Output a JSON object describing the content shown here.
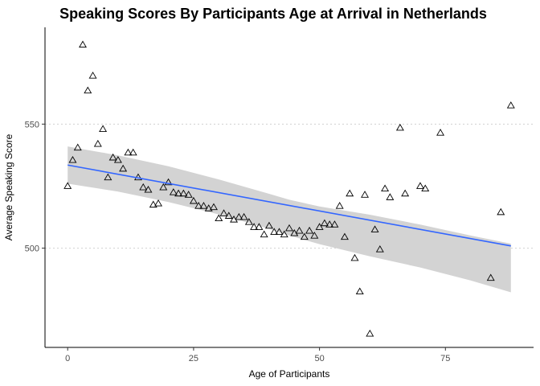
{
  "chart_data": {
    "type": "scatter",
    "title": "Speaking Scores By Participants Age at Arrival in Netherlands",
    "xlabel": "Age of Participants",
    "ylabel": "Average Speaking Score",
    "xlim": [
      -4.5,
      92.5
    ],
    "ylim": [
      460,
      589
    ],
    "x_ticks": [
      0,
      25,
      50,
      75
    ],
    "y_ticks": [
      500,
      550
    ],
    "grid": "horizontal dotted",
    "marker": "open-triangle",
    "colors": {
      "points": "#000000",
      "trend": "#3366ff",
      "band": "#d3d3d3"
    },
    "points": [
      [
        0,
        525
      ],
      [
        1,
        535.5
      ],
      [
        2,
        540.5
      ],
      [
        3,
        582
      ],
      [
        4,
        563.5
      ],
      [
        5,
        569.5
      ],
      [
        6,
        542
      ],
      [
        7,
        548
      ],
      [
        8,
        528.5
      ],
      [
        9,
        536.5
      ],
      [
        10,
        535.5
      ],
      [
        11,
        532
      ],
      [
        12,
        538.5
      ],
      [
        13,
        538.5
      ],
      [
        14,
        528.5
      ],
      [
        15,
        524.5
      ],
      [
        16,
        523.5
      ],
      [
        17,
        517.5
      ],
      [
        18,
        518
      ],
      [
        19,
        524.5
      ],
      [
        20,
        526.5
      ],
      [
        21,
        522.5
      ],
      [
        22,
        522
      ],
      [
        23,
        522
      ],
      [
        24,
        521.5
      ],
      [
        25,
        519
      ],
      [
        26,
        517
      ],
      [
        27,
        517
      ],
      [
        28,
        516
      ],
      [
        29,
        516.5
      ],
      [
        30,
        512
      ],
      [
        31,
        514
      ],
      [
        32,
        513
      ],
      [
        33,
        511.5
      ],
      [
        34,
        512.5
      ],
      [
        35,
        512.5
      ],
      [
        36,
        510.5
      ],
      [
        37,
        508.5
      ],
      [
        38,
        508.5
      ],
      [
        39,
        505.5
      ],
      [
        40,
        509
      ],
      [
        41,
        506.5
      ],
      [
        42,
        506.5
      ],
      [
        43,
        505.5
      ],
      [
        44,
        508
      ],
      [
        45,
        506
      ],
      [
        46,
        507
      ],
      [
        47,
        504.5
      ],
      [
        48,
        507
      ],
      [
        49,
        505
      ],
      [
        50,
        508.5
      ],
      [
        51,
        510
      ],
      [
        52,
        509.5
      ],
      [
        53,
        509.5
      ],
      [
        54,
        517
      ],
      [
        55,
        504.5
      ],
      [
        56,
        522
      ],
      [
        57,
        496
      ],
      [
        58,
        482.5
      ],
      [
        59,
        521.5
      ],
      [
        60,
        465.5
      ],
      [
        61,
        507.5
      ],
      [
        62,
        499.5
      ],
      [
        63,
        524
      ],
      [
        64,
        520.5
      ],
      [
        66,
        548.5
      ],
      [
        67,
        522
      ],
      [
        70,
        525
      ],
      [
        71,
        524
      ],
      [
        74,
        546.5
      ],
      [
        84,
        488
      ],
      [
        86,
        514.5
      ],
      [
        88,
        557.5
      ]
    ],
    "trend": {
      "x": [
        0,
        88
      ],
      "y": [
        533.5,
        500.9
      ]
    },
    "band": {
      "x": [
        0,
        10,
        20,
        30,
        40,
        44,
        50,
        60,
        70,
        80,
        88
      ],
      "lower": [
        526.0,
        522.8,
        518.6,
        513.6,
        507.8,
        505.1,
        501.6,
        496.7,
        492.2,
        487.0,
        482.2
      ],
      "upper": [
        541.0,
        537.4,
        533.0,
        527.7,
        521.9,
        519.5,
        516.8,
        513.5,
        509.5,
        505.1,
        501.8
      ]
    }
  }
}
